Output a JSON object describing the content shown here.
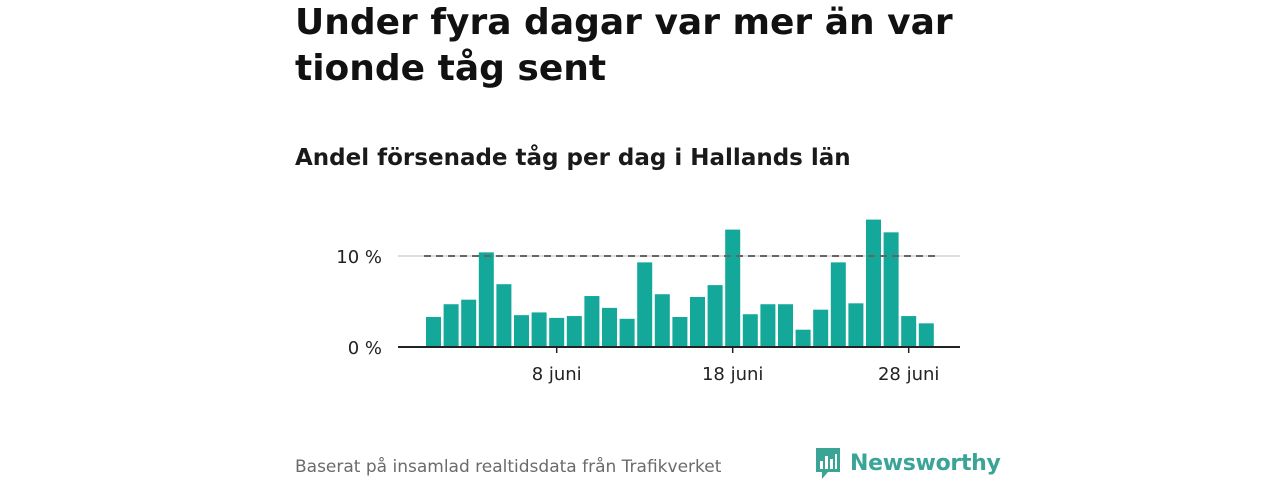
{
  "title": "Under fyra dagar var mer än var tionde tåg sent",
  "subtitle": "Andel försenade tåg per dag i Hallands län",
  "footer": "Baserat på insamlad realtidsdata från Trafikverket",
  "brand": {
    "name": "Newsworthy",
    "color": "#3aa597"
  },
  "colors": {
    "bar": "#13a89a",
    "reference_line": "#666666",
    "grid": "#cccccc",
    "axis": "#222222"
  },
  "chart_data": {
    "type": "bar",
    "x_unit": "day (juni)",
    "x": [
      1,
      2,
      3,
      4,
      5,
      6,
      7,
      8,
      9,
      10,
      11,
      12,
      13,
      14,
      15,
      16,
      17,
      18,
      19,
      20,
      21,
      22,
      23,
      24,
      25,
      26,
      27,
      28,
      29
    ],
    "values": [
      3.3,
      4.7,
      5.2,
      10.4,
      6.9,
      3.5,
      3.8,
      3.2,
      3.4,
      5.6,
      4.3,
      3.1,
      9.3,
      5.8,
      3.3,
      5.5,
      6.8,
      12.9,
      3.6,
      4.7,
      4.7,
      1.9,
      4.1,
      9.3,
      4.8,
      14.0,
      12.6,
      3.4,
      2.6
    ],
    "xticks": [
      {
        "x": 8,
        "label": "8 juni"
      },
      {
        "x": 18,
        "label": "18 juni"
      },
      {
        "x": 28,
        "label": "28 juni"
      }
    ],
    "yticks": [
      {
        "y": 0,
        "label": "0 %"
      },
      {
        "y": 10,
        "label": "10 %"
      }
    ],
    "ylim": [
      0,
      15
    ],
    "reference_line": {
      "y": 10,
      "style": "dashed"
    },
    "grid": "horizontal at 10"
  }
}
